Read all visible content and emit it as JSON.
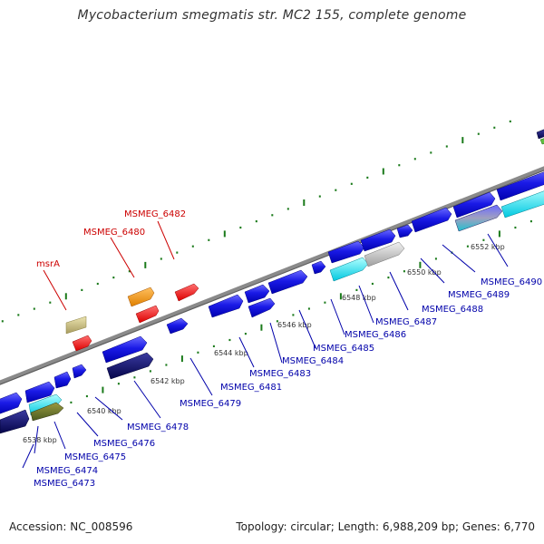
{
  "title": "Mycobacterium smegmatis str. MC2 155, complete genome",
  "footer": {
    "accession": "Accession: NC_008596",
    "summary": "Topology: circular; Length: 6,988,209 bp; Genes: 6,770"
  },
  "colors": {
    "blue_gene": "#1a1ae6",
    "navy_gene": "#0a0a6e",
    "cyan_gene": "#00e5f5",
    "red_gene": "#ff1a1a",
    "orange_gene": "#ff9900",
    "olive_gene": "#d0c888",
    "gray_gene": "#c8c8c8",
    "backbone": "#8a8a8a",
    "tick": "#1a7a1a",
    "label_blue": "#0000aa",
    "label_red": "#cc0000"
  },
  "ticks": [
    {
      "label": "6538 kbp"
    },
    {
      "label": "6540 kbp"
    },
    {
      "label": "6542 kbp"
    },
    {
      "label": "6544 kbp"
    },
    {
      "label": "6546 kbp"
    },
    {
      "label": "6548 kbp"
    },
    {
      "label": "6550 kbp"
    },
    {
      "label": "6552 kbp"
    }
  ],
  "gene_labels_below": [
    "MSMEG_6473",
    "MSMEG_6474",
    "MSMEG_6475",
    "MSMEG_6476",
    "MSMEG_6478",
    "MSMEG_6479",
    "MSMEG_6481",
    "MSMEG_6483",
    "MSMEG_6484",
    "MSMEG_6485",
    "MSMEG_6486",
    "MSMEG_6487",
    "MSMEG_6488",
    "MSMEG_6489",
    "MSMEG_6490"
  ],
  "gene_labels_above": [
    "msrA",
    "MSMEG_6480",
    "MSMEG_6482"
  ]
}
